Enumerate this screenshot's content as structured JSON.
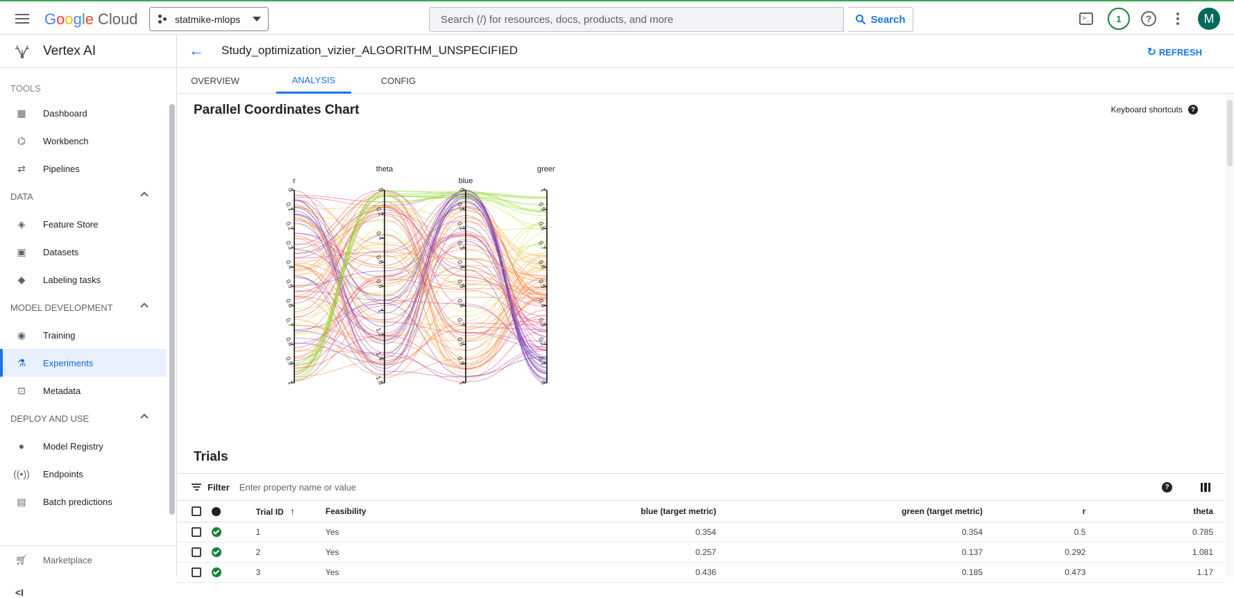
{
  "header": {
    "logo_google": "Google",
    "logo_cloud": "Cloud",
    "project": "statmike-mlops",
    "search_placeholder": "Search (/) for resources, docs, products, and more",
    "search_button": "Search",
    "notifications_count": "1",
    "avatar_letter": "M"
  },
  "sidebar": {
    "product": "Vertex AI",
    "sections": [
      {
        "label": "TOOLS",
        "items": [
          "Dashboard",
          "Workbench",
          "Pipelines"
        ]
      },
      {
        "label": "DATA",
        "items": [
          "Feature Store",
          "Datasets",
          "Labeling tasks"
        ]
      },
      {
        "label": "MODEL DEVELOPMENT",
        "items": [
          "Training",
          "Experiments",
          "Metadata"
        ]
      },
      {
        "label": "DEPLOY AND USE",
        "items": [
          "Model Registry",
          "Endpoints",
          "Batch predictions"
        ]
      }
    ],
    "active_item": "Experiments",
    "marketplace": "Marketplace",
    "collapse_glyph": "<I"
  },
  "page": {
    "title": "Study_optimization_vizier_ALGORITHM_UNSPECIFIED",
    "refresh": "REFRESH",
    "tabs": [
      "OVERVIEW",
      "ANALYSIS",
      "CONFIG"
    ],
    "active_tab": "ANALYSIS"
  },
  "chart_section": {
    "title": "Parallel Coordinates Chart",
    "keyboard_shortcuts": "Keyboard shortcuts"
  },
  "chart_data": {
    "type": "parallel-coordinates",
    "axes": [
      {
        "name": "r",
        "ticks": [
          "0",
          "0.1",
          "0.2",
          "0.3",
          "0.4",
          "0.5",
          "0.6",
          "0.7",
          "0.8",
          "0.9",
          "1"
        ],
        "range": [
          0,
          1
        ]
      },
      {
        "name": "theta",
        "ticks": [
          "0",
          "0.2",
          "0.4",
          "0.6",
          "0.8",
          "1",
          "1.2",
          "1.4",
          "1.6"
        ],
        "range": [
          0,
          1.6
        ]
      },
      {
        "name": "blue",
        "ticks": [
          "0",
          "0.1",
          "0.2",
          "0.3",
          "0.4",
          "0.5",
          "0.6",
          "0.7",
          "0.8",
          "0.9",
          "1"
        ],
        "range": [
          0,
          1
        ]
      },
      {
        "name": "green",
        "ticks": [
          "1",
          "0.9",
          "0.8",
          "0.7",
          "0.6",
          "0.5",
          "0.4",
          "0.3",
          "0.2",
          "0.1",
          "0"
        ],
        "range": [
          1,
          0
        ]
      }
    ],
    "color_scale": [
      "#7b3fb5",
      "#c44fa3",
      "#ee4c6c",
      "#f7844a",
      "#f9b94d",
      "#c9e852",
      "#9be03f"
    ]
  },
  "trials": {
    "title": "Trials",
    "filter_label": "Filter",
    "filter_placeholder": "Enter property name or value",
    "columns": [
      "Trial ID",
      "Feasibility",
      "blue (target metric)",
      "green (target metric)",
      "r",
      "theta"
    ],
    "rows": [
      {
        "id": "1",
        "feasibility": "Yes",
        "blue": "0.354",
        "green": "0.354",
        "r": "0.5",
        "theta": "0.785"
      },
      {
        "id": "2",
        "feasibility": "Yes",
        "blue": "0.257",
        "green": "0.137",
        "r": "0.292",
        "theta": "1.081"
      },
      {
        "id": "3",
        "feasibility": "Yes",
        "blue": "0.436",
        "green": "0.185",
        "r": "0.473",
        "theta": "1.17"
      }
    ]
  }
}
